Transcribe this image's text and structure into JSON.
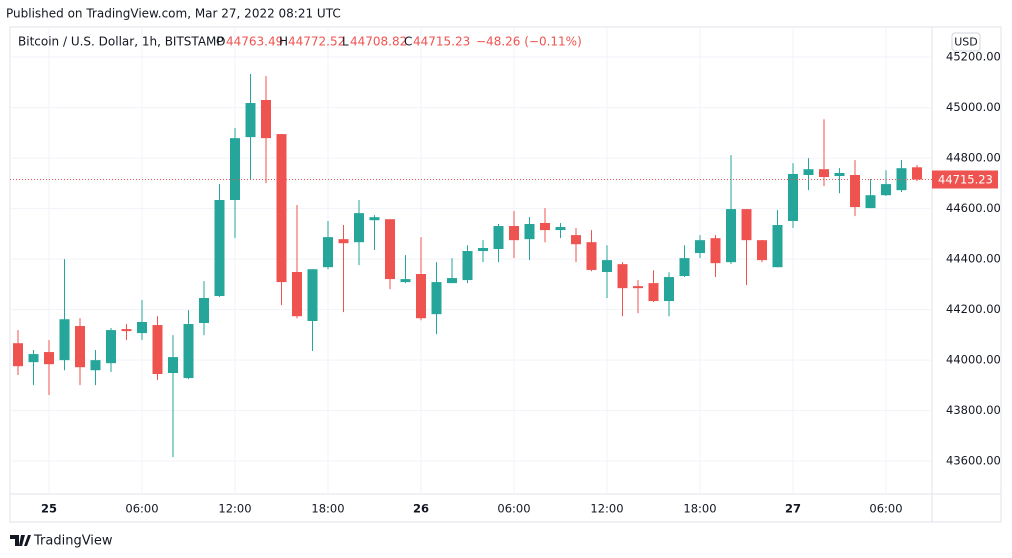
{
  "published": "Published on TradingView.com, Mar 27, 2022 08:21 UTC",
  "footer": "TradingView",
  "chart_data": {
    "type": "candlestick",
    "title": "Bitcoin / U.S. Dollar, 1h, BITSTAMP",
    "ohlc_labels": [
      "O",
      "H",
      "L",
      "C"
    ],
    "change": "−48.26 (−0.11%)",
    "currency": "USD",
    "up_color": "#26a69a",
    "down_color": "#ef5350",
    "grid": true,
    "categories": [
      null,
      null,
      "25",
      null,
      null,
      null,
      null,
      null,
      "06:00",
      null,
      null,
      null,
      null,
      null,
      "12:00",
      null,
      null,
      null,
      null,
      null,
      "18:00",
      null,
      null,
      null,
      null,
      null,
      "26",
      null,
      null,
      null,
      null,
      null,
      "06:00",
      null,
      null,
      null,
      null,
      null,
      "12:00",
      null,
      null,
      null,
      null,
      null,
      "18:00",
      null,
      null,
      null,
      null,
      null,
      "27",
      null,
      null,
      null,
      null,
      null,
      "06:00",
      null,
      null
    ],
    "open": [
      44067,
      43992,
      44032,
      44000,
      44135,
      43960,
      43988,
      44123,
      44107,
      44139,
      43949,
      43929,
      44147,
      44254,
      44634,
      44883,
      45030,
      44895,
      44349,
      44155,
      44368,
      44479,
      44467,
      44554,
      44558,
      44309,
      44341,
      44182,
      44305,
      44317,
      44432,
      44440,
      44531,
      44479,
      44543,
      44515,
      44495,
      44467,
      44349,
      44380,
      44293,
      44305,
      44234,
      44333,
      44424,
      44483,
      44388,
      44598,
      44475,
      44368,
      44551,
      44733,
      44756,
      44729,
      44733,
      44602,
      44653,
      44673,
      44763.49
    ],
    "high": [
      44119,
      44040,
      44079,
      44400,
      44166,
      44040,
      44127,
      44143,
      44238,
      44174,
      44099,
      44198,
      44313,
      44697,
      44919,
      45133,
      45125,
      44895,
      44614,
      44360,
      44551,
      44535,
      44634,
      44574,
      44558,
      44416,
      44487,
      44388,
      44404,
      44455,
      44475,
      44539,
      44590,
      44566,
      44602,
      44543,
      44523,
      44515,
      44455,
      44388,
      44317,
      44356,
      44348,
      44455,
      44495,
      44495,
      44812,
      44598,
      44475,
      44594,
      44780,
      44800,
      44954,
      44760,
      44792,
      44717,
      44752,
      44792,
      44772.52
    ],
    "low": [
      43941,
      43901,
      43862,
      43960,
      43901,
      43901,
      43953,
      44079,
      44079,
      43921,
      43616,
      43925,
      44099,
      44250,
      44483,
      44713,
      44701,
      44218,
      44166,
      44036,
      44360,
      44190,
      44376,
      44436,
      44281,
      44305,
      44158,
      44103,
      44305,
      44305,
      44388,
      44388,
      44404,
      44396,
      44467,
      44483,
      44388,
      44352,
      44246,
      44174,
      44186,
      44230,
      44174,
      44329,
      44404,
      44329,
      44380,
      44297,
      44388,
      44368,
      44523,
      44673,
      44689,
      44661,
      44570,
      44602,
      44650,
      44665,
      44708.82
    ],
    "close": [
      43976,
      44024,
      43984,
      44162,
      43972,
      44000,
      44119,
      44115,
      44151,
      43945,
      44012,
      44143,
      44246,
      44634,
      44879,
      45018,
      44879,
      44309,
      44174,
      44360,
      44487,
      44463,
      44582,
      44566,
      44321,
      44321,
      44166,
      44309,
      44325,
      44432,
      44444,
      44531,
      44475,
      44539,
      44515,
      44527,
      44459,
      44357,
      44396,
      44285,
      44285,
      44234,
      44329,
      44404,
      44475,
      44384,
      44598,
      44475,
      44396,
      44535,
      44737,
      44756,
      44725,
      44741,
      44606,
      44653,
      44697,
      44760,
      44715.23
    ],
    "ylim": [
      43470,
      45319
    ],
    "yticks": [
      {
        "value": 43600,
        "label": "43600.00"
      },
      {
        "value": 43800,
        "label": "43800.00"
      },
      {
        "value": 44000,
        "label": "44000.00"
      },
      {
        "value": 44200,
        "label": "44200.00"
      },
      {
        "value": 44400,
        "label": "44400.00"
      },
      {
        "value": 44600,
        "label": "44600.00"
      },
      {
        "value": 44800,
        "label": "44800.00"
      },
      {
        "value": 45000,
        "label": "45000.00"
      },
      {
        "value": 45200,
        "label": "45200.00"
      }
    ]
  }
}
